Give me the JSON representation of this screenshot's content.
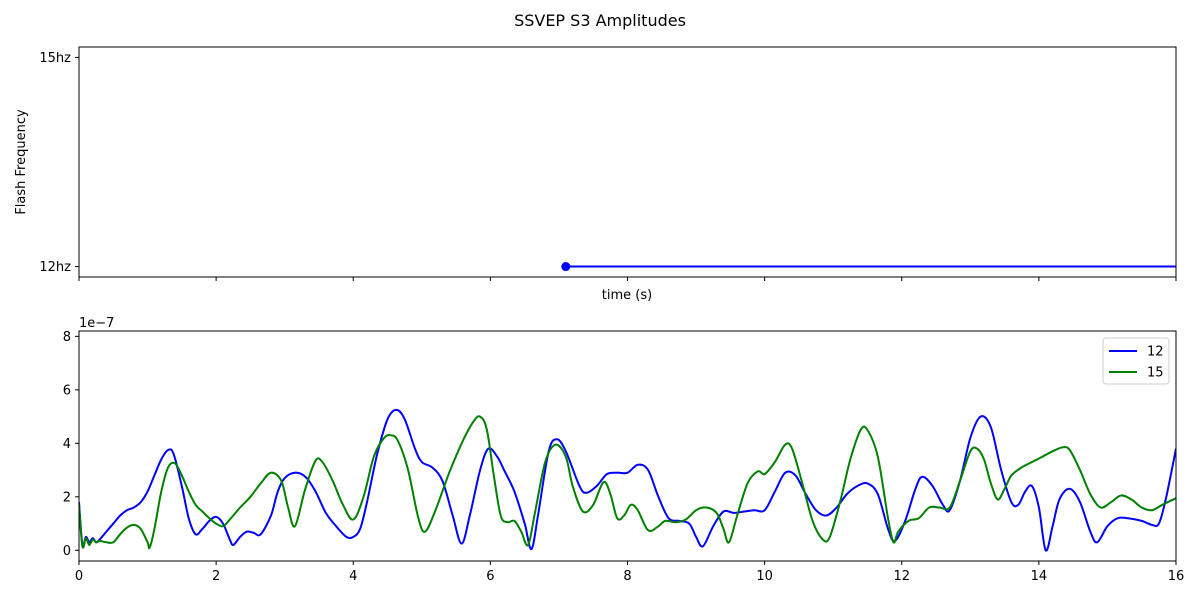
{
  "figure": {
    "title": "SSVEP S3 Amplitudes"
  },
  "chart_data": [
    {
      "type": "line",
      "xlabel": "time (s)",
      "ylabel": "Flash Frequency",
      "xlim": [
        0,
        16
      ],
      "ylim": [
        11.85,
        15.15
      ],
      "xtick_values": [
        0,
        2,
        4,
        6,
        8,
        10,
        12,
        14,
        16
      ],
      "xtick_labels_visible": false,
      "yticks": [
        {
          "value": 12,
          "label": "12hz"
        },
        {
          "value": 15,
          "label": "15hz"
        }
      ],
      "series": [
        {
          "color": "#0000ff",
          "marker_start": true,
          "points": [
            [
              7.1,
              12
            ],
            [
              16,
              12
            ]
          ]
        }
      ]
    },
    {
      "type": "line",
      "offset_label": "1e−7",
      "xlim": [
        0,
        16
      ],
      "ylim": [
        -0.4,
        8.2
      ],
      "xticks": [
        0,
        2,
        4,
        6,
        8,
        10,
        12,
        14,
        16
      ],
      "yticks": [
        0,
        2,
        4,
        6,
        8
      ],
      "legend_position": "upper-right",
      "series": [
        {
          "name": "12",
          "color": "#0000ff",
          "points": [
            [
              0,
              1.8
            ],
            [
              0.05,
              0.2
            ],
            [
              0.1,
              0.5
            ],
            [
              0.15,
              0.3
            ],
            [
              0.2,
              0.45
            ],
            [
              0.25,
              0.3
            ],
            [
              0.3,
              0.4
            ],
            [
              0.4,
              0.7
            ],
            [
              0.5,
              1.0
            ],
            [
              0.6,
              1.3
            ],
            [
              0.7,
              1.5
            ],
            [
              0.8,
              1.6
            ],
            [
              0.9,
              1.8
            ],
            [
              1.0,
              2.2
            ],
            [
              1.1,
              2.8
            ],
            [
              1.2,
              3.4
            ],
            [
              1.3,
              3.75
            ],
            [
              1.38,
              3.6
            ],
            [
              1.5,
              2.4
            ],
            [
              1.6,
              1.2
            ],
            [
              1.7,
              0.6
            ],
            [
              1.8,
              0.8
            ],
            [
              1.9,
              1.1
            ],
            [
              2.0,
              1.25
            ],
            [
              2.1,
              1.0
            ],
            [
              2.2,
              0.4
            ],
            [
              2.25,
              0.2
            ],
            [
              2.35,
              0.5
            ],
            [
              2.45,
              0.7
            ],
            [
              2.55,
              0.65
            ],
            [
              2.65,
              0.6
            ],
            [
              2.8,
              1.3
            ],
            [
              2.9,
              2.2
            ],
            [
              3.0,
              2.7
            ],
            [
              3.15,
              2.9
            ],
            [
              3.3,
              2.75
            ],
            [
              3.45,
              2.2
            ],
            [
              3.6,
              1.4
            ],
            [
              3.75,
              0.9
            ],
            [
              3.9,
              0.5
            ],
            [
              4.0,
              0.5
            ],
            [
              4.1,
              0.8
            ],
            [
              4.2,
              1.8
            ],
            [
              4.35,
              3.6
            ],
            [
              4.5,
              4.9
            ],
            [
              4.63,
              5.25
            ],
            [
              4.75,
              4.9
            ],
            [
              4.9,
              3.8
            ],
            [
              5.0,
              3.3
            ],
            [
              5.15,
              3.1
            ],
            [
              5.3,
              2.6
            ],
            [
              5.45,
              1.3
            ],
            [
              5.58,
              0.25
            ],
            [
              5.7,
              1.3
            ],
            [
              5.85,
              3.0
            ],
            [
              5.97,
              3.8
            ],
            [
              6.1,
              3.5
            ],
            [
              6.2,
              3.0
            ],
            [
              6.35,
              2.2
            ],
            [
              6.5,
              1.0
            ],
            [
              6.6,
              0.05
            ],
            [
              6.7,
              1.4
            ],
            [
              6.85,
              3.7
            ],
            [
              6.97,
              4.15
            ],
            [
              7.1,
              3.7
            ],
            [
              7.3,
              2.4
            ],
            [
              7.4,
              2.15
            ],
            [
              7.55,
              2.4
            ],
            [
              7.7,
              2.85
            ],
            [
              7.85,
              2.9
            ],
            [
              8.0,
              2.9
            ],
            [
              8.15,
              3.2
            ],
            [
              8.3,
              3.0
            ],
            [
              8.45,
              2.0
            ],
            [
              8.6,
              1.2
            ],
            [
              8.75,
              1.1
            ],
            [
              8.9,
              1.0
            ],
            [
              9.0,
              0.5
            ],
            [
              9.1,
              0.15
            ],
            [
              9.25,
              0.9
            ],
            [
              9.4,
              1.45
            ],
            [
              9.55,
              1.4
            ],
            [
              9.7,
              1.45
            ],
            [
              9.85,
              1.5
            ],
            [
              10.0,
              1.5
            ],
            [
              10.15,
              2.2
            ],
            [
              10.3,
              2.9
            ],
            [
              10.45,
              2.8
            ],
            [
              10.6,
              2.1
            ],
            [
              10.75,
              1.5
            ],
            [
              10.9,
              1.3
            ],
            [
              11.05,
              1.6
            ],
            [
              11.2,
              2.1
            ],
            [
              11.35,
              2.4
            ],
            [
              11.5,
              2.5
            ],
            [
              11.65,
              2.1
            ],
            [
              11.8,
              0.8
            ],
            [
              11.9,
              0.35
            ],
            [
              12.05,
              1.1
            ],
            [
              12.2,
              2.3
            ],
            [
              12.3,
              2.75
            ],
            [
              12.45,
              2.4
            ],
            [
              12.6,
              1.7
            ],
            [
              12.7,
              1.5
            ],
            [
              12.85,
              2.6
            ],
            [
              13.0,
              4.2
            ],
            [
              13.15,
              5.0
            ],
            [
              13.3,
              4.6
            ],
            [
              13.45,
              3.0
            ],
            [
              13.6,
              1.8
            ],
            [
              13.7,
              1.7
            ],
            [
              13.8,
              2.2
            ],
            [
              13.9,
              2.4
            ],
            [
              14.0,
              1.6
            ],
            [
              14.1,
              0.0
            ],
            [
              14.2,
              0.9
            ],
            [
              14.3,
              1.9
            ],
            [
              14.45,
              2.3
            ],
            [
              14.6,
              1.8
            ],
            [
              14.75,
              0.7
            ],
            [
              14.85,
              0.3
            ],
            [
              15.0,
              0.9
            ],
            [
              15.15,
              1.2
            ],
            [
              15.3,
              1.2
            ],
            [
              15.5,
              1.1
            ],
            [
              15.65,
              0.95
            ],
            [
              15.75,
              1.0
            ],
            [
              15.85,
              1.9
            ],
            [
              16.0,
              3.8
            ]
          ]
        },
        {
          "name": "15",
          "color": "#008000",
          "points": [
            [
              0,
              1.7
            ],
            [
              0.05,
              0.15
            ],
            [
              0.1,
              0.45
            ],
            [
              0.15,
              0.2
            ],
            [
              0.2,
              0.4
            ],
            [
              0.25,
              0.3
            ],
            [
              0.3,
              0.35
            ],
            [
              0.4,
              0.3
            ],
            [
              0.5,
              0.3
            ],
            [
              0.6,
              0.6
            ],
            [
              0.7,
              0.85
            ],
            [
              0.8,
              0.95
            ],
            [
              0.9,
              0.8
            ],
            [
              1.0,
              0.3
            ],
            [
              1.03,
              0.1
            ],
            [
              1.1,
              0.8
            ],
            [
              1.2,
              2.2
            ],
            [
              1.3,
              3.1
            ],
            [
              1.4,
              3.25
            ],
            [
              1.5,
              2.8
            ],
            [
              1.6,
              2.2
            ],
            [
              1.7,
              1.7
            ],
            [
              1.8,
              1.45
            ],
            [
              1.9,
              1.2
            ],
            [
              2.0,
              1.0
            ],
            [
              2.1,
              0.9
            ],
            [
              2.2,
              1.15
            ],
            [
              2.35,
              1.6
            ],
            [
              2.5,
              2.0
            ],
            [
              2.65,
              2.5
            ],
            [
              2.8,
              2.9
            ],
            [
              2.95,
              2.6
            ],
            [
              3.05,
              1.6
            ],
            [
              3.15,
              0.9
            ],
            [
              3.3,
              2.3
            ],
            [
              3.45,
              3.35
            ],
            [
              3.55,
              3.3
            ],
            [
              3.7,
              2.6
            ],
            [
              3.85,
              1.7
            ],
            [
              4.0,
              1.15
            ],
            [
              4.15,
              2.0
            ],
            [
              4.3,
              3.5
            ],
            [
              4.45,
              4.2
            ],
            [
              4.55,
              4.3
            ],
            [
              4.65,
              4.1
            ],
            [
              4.8,
              3.0
            ],
            [
              4.95,
              1.2
            ],
            [
              5.05,
              0.7
            ],
            [
              5.2,
              1.5
            ],
            [
              5.4,
              2.9
            ],
            [
              5.6,
              4.1
            ],
            [
              5.75,
              4.8
            ],
            [
              5.85,
              5.0
            ],
            [
              5.95,
              4.5
            ],
            [
              6.05,
              2.8
            ],
            [
              6.15,
              1.3
            ],
            [
              6.25,
              1.05
            ],
            [
              6.35,
              1.1
            ],
            [
              6.45,
              0.7
            ],
            [
              6.55,
              0.2
            ],
            [
              6.65,
              1.4
            ],
            [
              6.8,
              3.3
            ],
            [
              6.95,
              3.95
            ],
            [
              7.1,
              3.5
            ],
            [
              7.2,
              2.4
            ],
            [
              7.35,
              1.45
            ],
            [
              7.5,
              1.7
            ],
            [
              7.65,
              2.55
            ],
            [
              7.75,
              2.1
            ],
            [
              7.85,
              1.2
            ],
            [
              7.95,
              1.3
            ],
            [
              8.05,
              1.7
            ],
            [
              8.15,
              1.5
            ],
            [
              8.3,
              0.75
            ],
            [
              8.45,
              0.9
            ],
            [
              8.55,
              1.1
            ],
            [
              8.7,
              1.05
            ],
            [
              8.85,
              1.15
            ],
            [
              9.0,
              1.5
            ],
            [
              9.15,
              1.6
            ],
            [
              9.3,
              1.4
            ],
            [
              9.4,
              0.8
            ],
            [
              9.48,
              0.3
            ],
            [
              9.6,
              1.3
            ],
            [
              9.75,
              2.5
            ],
            [
              9.9,
              2.95
            ],
            [
              10.0,
              2.85
            ],
            [
              10.15,
              3.3
            ],
            [
              10.3,
              3.95
            ],
            [
              10.4,
              3.8
            ],
            [
              10.55,
              2.5
            ],
            [
              10.7,
              1.1
            ],
            [
              10.85,
              0.4
            ],
            [
              10.95,
              0.5
            ],
            [
              11.1,
              1.8
            ],
            [
              11.25,
              3.4
            ],
            [
              11.4,
              4.5
            ],
            [
              11.5,
              4.5
            ],
            [
              11.65,
              3.5
            ],
            [
              11.8,
              1.2
            ],
            [
              11.88,
              0.3
            ],
            [
              11.95,
              0.7
            ],
            [
              12.1,
              1.1
            ],
            [
              12.25,
              1.2
            ],
            [
              12.4,
              1.6
            ],
            [
              12.55,
              1.6
            ],
            [
              12.7,
              1.6
            ],
            [
              12.85,
              2.6
            ],
            [
              13.0,
              3.7
            ],
            [
              13.1,
              3.8
            ],
            [
              13.2,
              3.4
            ],
            [
              13.3,
              2.5
            ],
            [
              13.4,
              1.9
            ],
            [
              13.5,
              2.3
            ],
            [
              13.6,
              2.8
            ],
            [
              13.75,
              3.1
            ],
            [
              13.9,
              3.3
            ],
            [
              14.05,
              3.5
            ],
            [
              14.2,
              3.7
            ],
            [
              14.35,
              3.85
            ],
            [
              14.45,
              3.75
            ],
            [
              14.6,
              3.0
            ],
            [
              14.75,
              2.1
            ],
            [
              14.9,
              1.6
            ],
            [
              15.05,
              1.8
            ],
            [
              15.2,
              2.05
            ],
            [
              15.35,
              1.9
            ],
            [
              15.5,
              1.6
            ],
            [
              15.65,
              1.5
            ],
            [
              15.8,
              1.7
            ],
            [
              16.0,
              1.95
            ]
          ]
        }
      ]
    }
  ]
}
